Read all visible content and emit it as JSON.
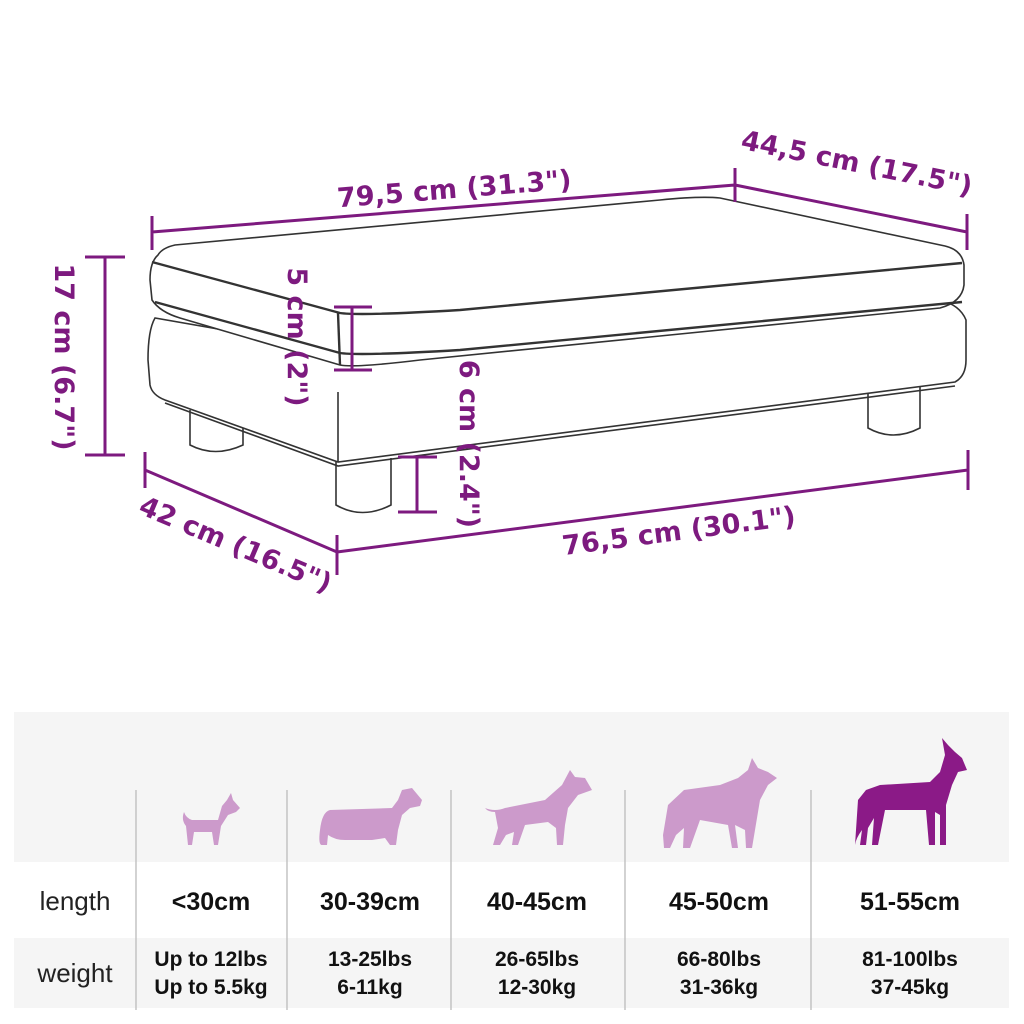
{
  "colors": {
    "dimension": "#7d1a7f",
    "dog_light": "#cc9acb",
    "dog_dark": "#8b1a87",
    "table_band": "#f5f5f5",
    "outline": "#333333"
  },
  "dimensions": {
    "top_length": "79,5 cm (31.3\")",
    "top_depth": "44,5 cm (17.5\")",
    "height": "17 cm (6.7\")",
    "cushion": "5 cm (2\")",
    "legs": "6 cm (2.4\")",
    "bottom_depth": "42 cm (16.5\")",
    "bottom_length": "76,5 cm (30.1\")"
  },
  "size_table": {
    "row_labels": {
      "length": "length",
      "weight": "weight"
    },
    "columns": [
      {
        "dog_icon": "chihuahua-icon",
        "length": "<30cm",
        "weight_lbs": "Up to 12lbs",
        "weight_kg": "Up to 5.5kg",
        "highlighted": false
      },
      {
        "dog_icon": "dachshund-icon",
        "length": "30-39cm",
        "weight_lbs": "13-25lbs",
        "weight_kg": "6-11kg",
        "highlighted": false
      },
      {
        "dog_icon": "bull-terrier-icon",
        "length": "40-45cm",
        "weight_lbs": "26-65lbs",
        "weight_kg": "12-30kg",
        "highlighted": false
      },
      {
        "dog_icon": "shepherd-icon",
        "length": "45-50cm",
        "weight_lbs": "66-80lbs",
        "weight_kg": "31-36kg",
        "highlighted": false
      },
      {
        "dog_icon": "great-dane-icon",
        "length": "51-55cm",
        "weight_lbs": "81-100lbs",
        "weight_kg": "37-45kg",
        "highlighted": true
      }
    ]
  }
}
